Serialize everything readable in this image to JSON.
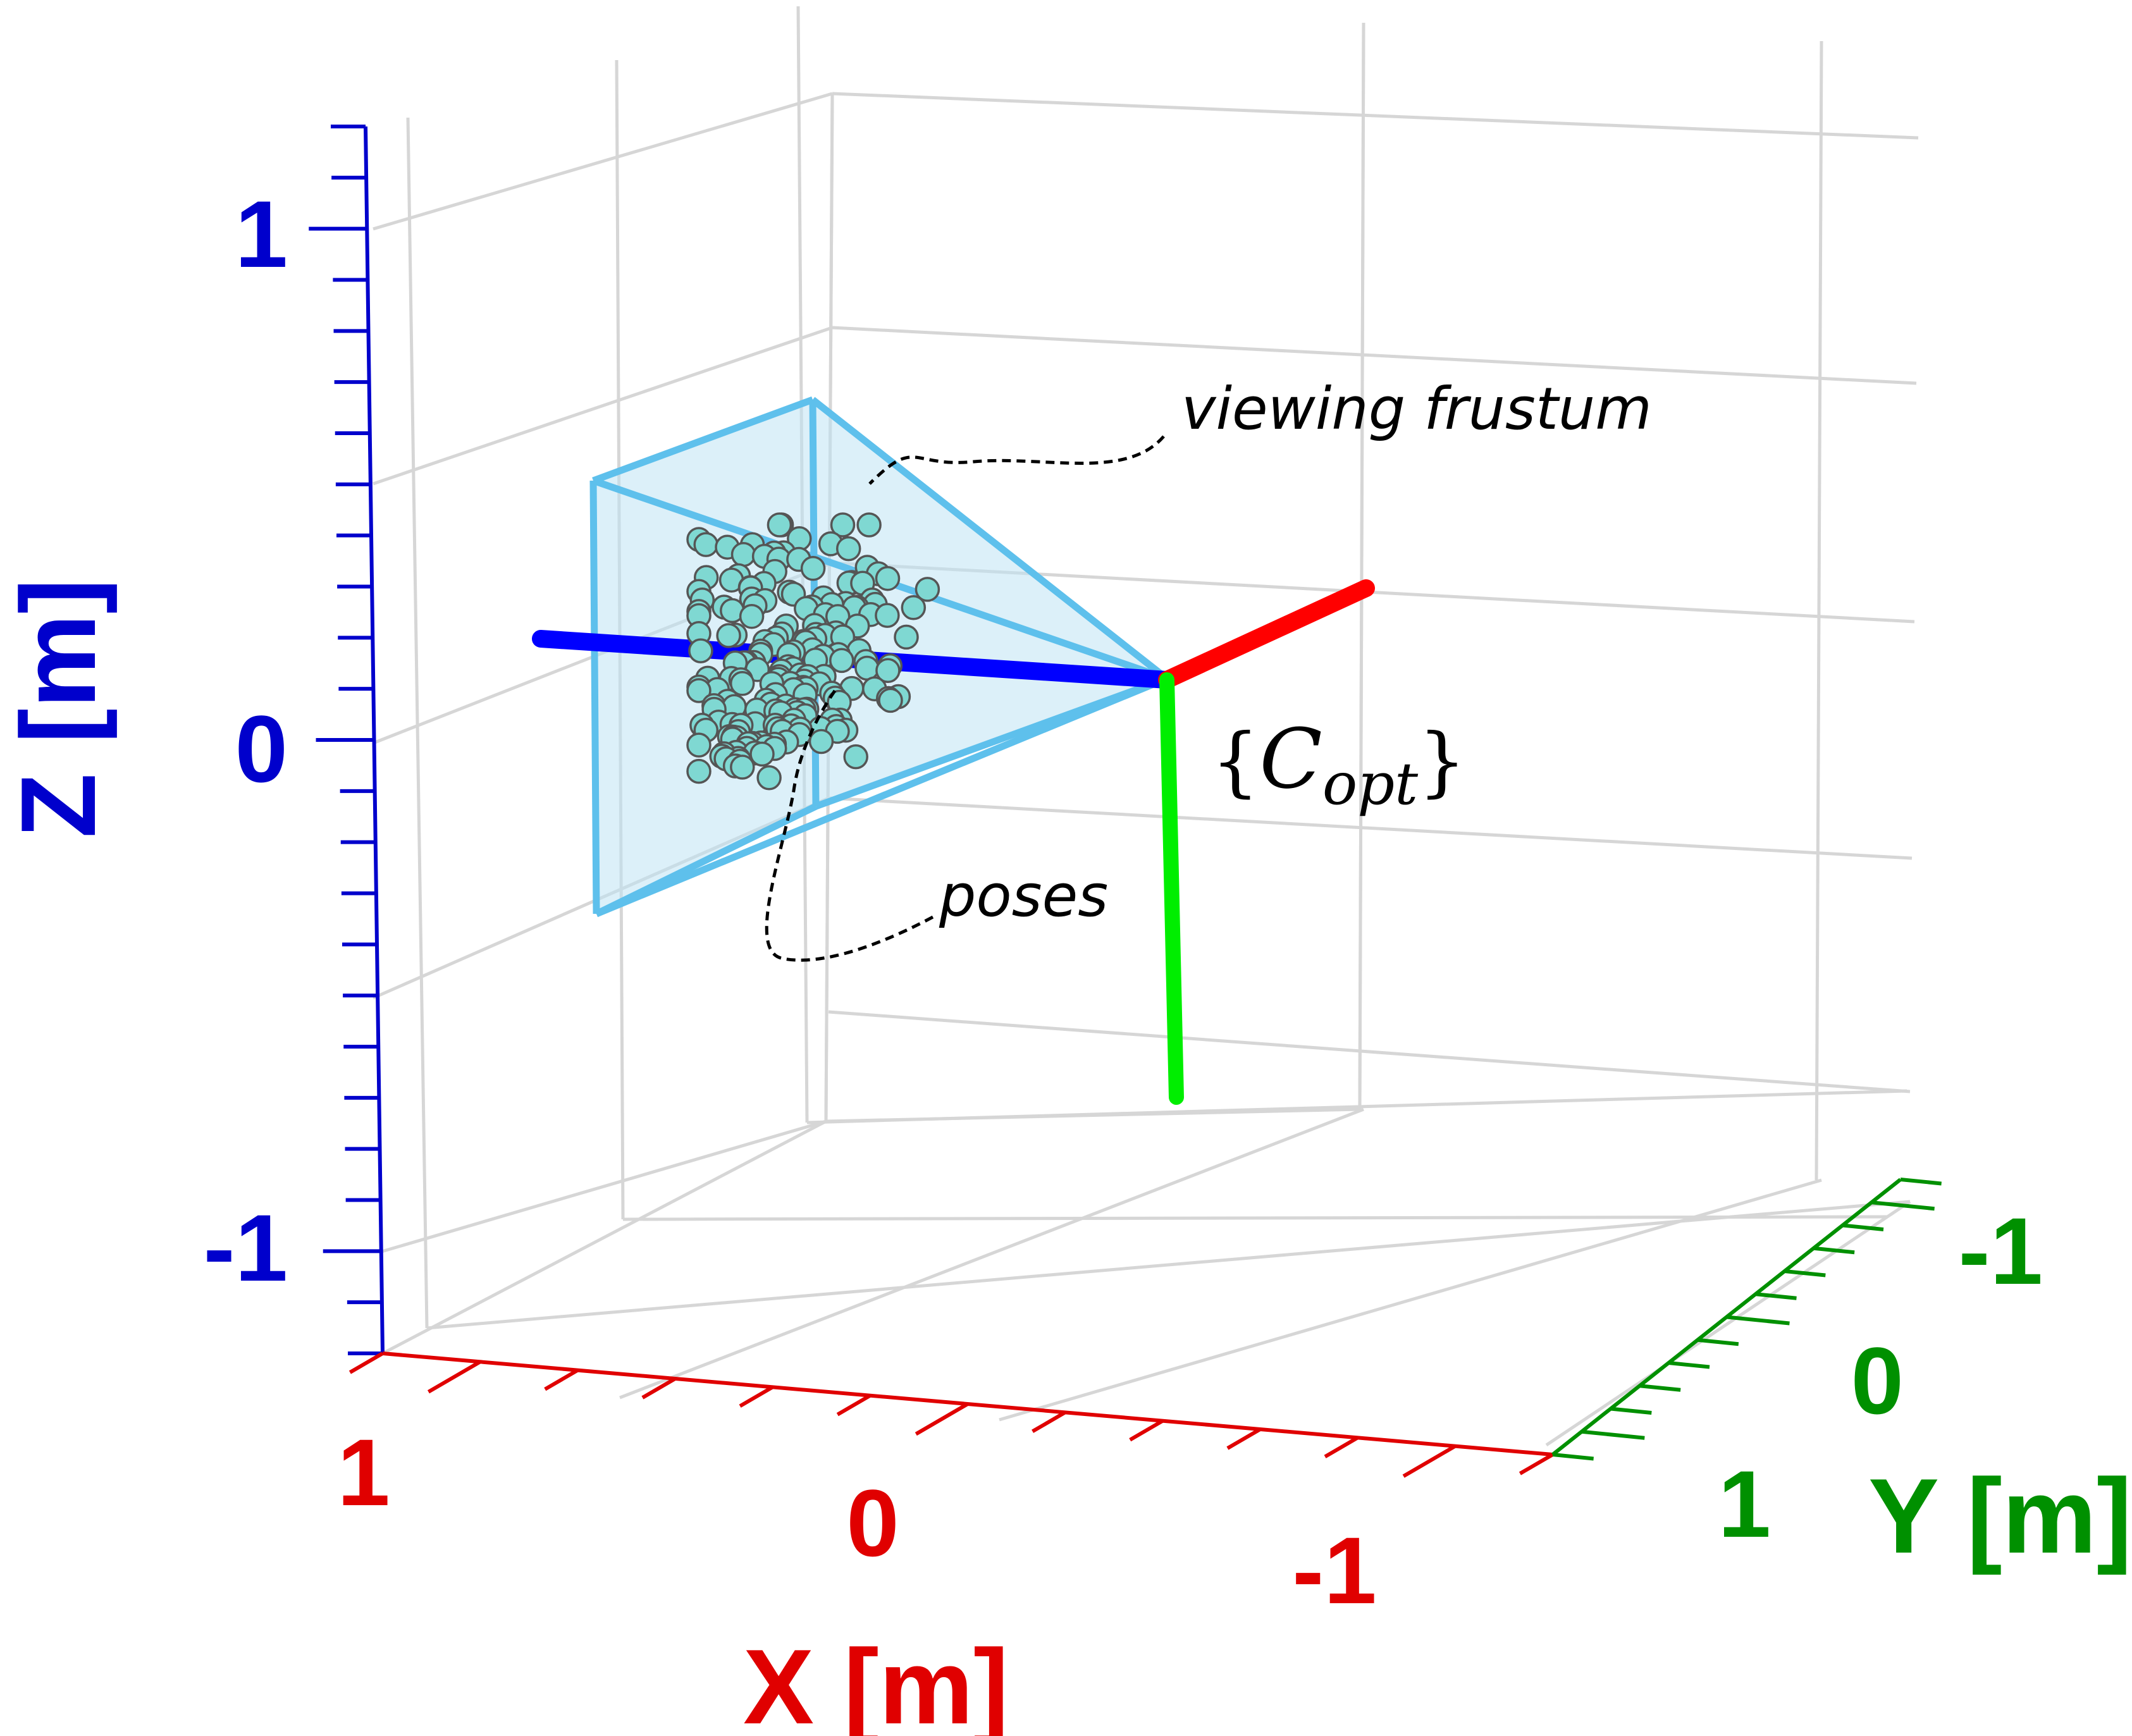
{
  "chart_data": {
    "type": "scatter",
    "projection": "3d",
    "axes": {
      "x": {
        "label": "X [m]",
        "ticks": [
          "1",
          "0",
          "-1"
        ],
        "color": "#e00000"
      },
      "y": {
        "label": "Y [m]",
        "ticks": [
          "-1",
          "0",
          "1"
        ],
        "color": "#009000"
      },
      "z": {
        "label": "Z [m]",
        "ticks": [
          "1",
          "0",
          "-1"
        ],
        "color": "#0000cc"
      }
    },
    "grid": true,
    "camera_frame": {
      "label_base": "C",
      "label_sub": "opt",
      "axis_colors": {
        "x": "#ff0000",
        "y": "#00ee00",
        "z": "#0000ff"
      }
    },
    "frustum": {
      "edge_color": "#5ec0ec",
      "fill_color": "#bfe4f4"
    },
    "poses": {
      "marker_fill": "#7fd8d2",
      "marker_edge": "#555555"
    },
    "annotations": {
      "frustum": "viewing frustum",
      "poses": "poses"
    }
  }
}
